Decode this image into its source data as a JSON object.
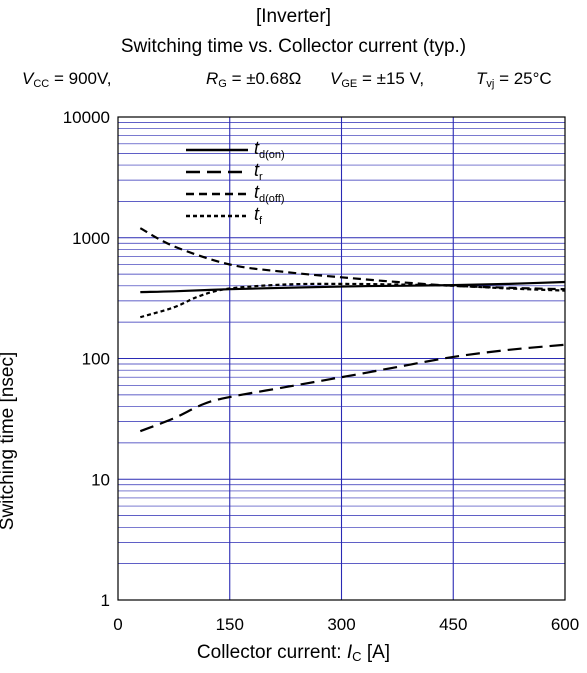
{
  "header": {
    "title1": "[Inverter]",
    "title2": "Switching time vs. Collector current (typ.)"
  },
  "conditions": {
    "vcc_sym": "V",
    "vcc_sub": "CC",
    "vcc_val": "= 900V,",
    "rg_sym": "R",
    "rg_sub": "G",
    "rg_val": "= ±0.68Ω",
    "vge_sym": "V",
    "vge_sub": "GE",
    "vge_val": "= ±15 V,",
    "tvj_sym": "T",
    "tvj_sub": "vj",
    "tvj_val": "= 25°C"
  },
  "axes": {
    "ylabel": "Switching time [nsec]",
    "xlabel_text": "Collector current:",
    "xlabel_sym": "I",
    "xlabel_sub": "C",
    "xlabel_unit": "[A]"
  },
  "colors": {
    "grid": "#2a2ab4",
    "series": "#000000"
  },
  "legend": [
    {
      "sym": "t",
      "sub": "d(on)"
    },
    {
      "sym": "t",
      "sub": "r"
    },
    {
      "sym": "t",
      "sub": "d(off)"
    },
    {
      "sym": "t",
      "sub": "f"
    }
  ],
  "chart_data": {
    "type": "line",
    "title": "Switching time vs. Collector current (typ.)",
    "xlabel": "Collector current: IC [A]",
    "ylabel": "Switching time [nsec]",
    "xlim": [
      0,
      600
    ],
    "ylim": [
      1,
      10000
    ],
    "yscale": "log",
    "x_ticks": [
      "0",
      "150",
      "300",
      "450",
      "600"
    ],
    "y_ticks": [
      "1",
      "10",
      "100",
      "1000",
      "10000"
    ],
    "grid": true,
    "legend_position": "top-left",
    "series": [
      {
        "name": "td(on)",
        "style": "solid",
        "x": [
          30,
          75,
          150,
          225,
          300,
          375,
          450,
          525,
          600
        ],
        "y": [
          355,
          360,
          375,
          385,
          395,
          400,
          405,
          415,
          430
        ]
      },
      {
        "name": "tr",
        "style": "longdash",
        "x": [
          30,
          75,
          115,
          150,
          225,
          300,
          375,
          450,
          525,
          600
        ],
        "y": [
          25,
          32,
          42,
          48,
          58,
          70,
          85,
          103,
          118,
          130
        ]
      },
      {
        "name": "td(off)",
        "style": "dash",
        "x": [
          30,
          75,
          150,
          225,
          300,
          375,
          450,
          525,
          600
        ],
        "y": [
          1200,
          850,
          600,
          520,
          470,
          430,
          400,
          385,
          375
        ]
      },
      {
        "name": "tf",
        "style": "shortdash",
        "x": [
          30,
          75,
          110,
          150,
          225,
          300,
          375,
          450,
          525,
          600
        ],
        "y": [
          220,
          265,
          330,
          380,
          410,
          415,
          410,
          400,
          380,
          365
        ]
      }
    ]
  }
}
